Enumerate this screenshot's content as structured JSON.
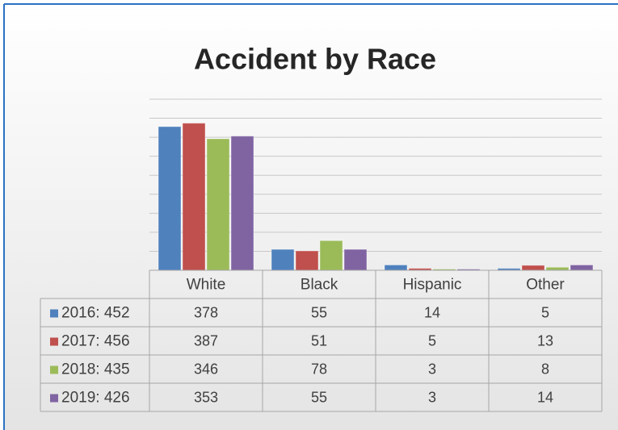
{
  "chart_data": {
    "type": "bar",
    "title": "Accident by Race",
    "categories": [
      "White",
      "Black",
      "Hispanic",
      "Other"
    ],
    "series": [
      {
        "name": "2016: 452",
        "color": "#4f81bd",
        "values": [
          378,
          55,
          14,
          5
        ]
      },
      {
        "name": "2017: 456",
        "color": "#c0504d",
        "values": [
          387,
          51,
          5,
          13
        ]
      },
      {
        "name": "2018: 435",
        "color": "#9bbb59",
        "values": [
          346,
          78,
          3,
          8
        ]
      },
      {
        "name": "2019: 426",
        "color": "#8064a2",
        "values": [
          353,
          55,
          3,
          14
        ]
      }
    ],
    "ylim": [
      0,
      450
    ],
    "yticks": [
      0,
      50,
      100,
      150,
      200,
      250,
      300,
      350,
      400,
      450
    ],
    "grid": true
  }
}
